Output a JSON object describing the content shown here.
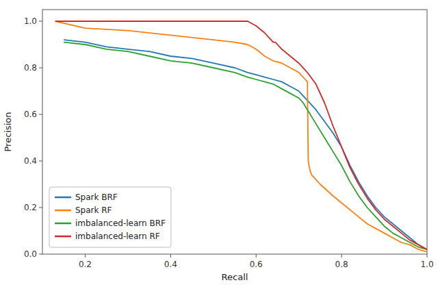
{
  "chart_data": {
    "type": "line",
    "xlabel": "Recall",
    "ylabel": "Precision",
    "xlim": [
      0.1,
      1.0
    ],
    "ylim": [
      0.0,
      1.05
    ],
    "xticks": [
      0.2,
      0.4,
      0.6,
      0.8,
      {
        "value": 1.0,
        "label": "1.0"
      }
    ],
    "yticks": [
      {
        "value": 0.0,
        "label": "0.0"
      },
      0.2,
      0.4,
      0.6,
      0.8,
      {
        "value": 1.0,
        "label": "1.0"
      }
    ],
    "grid": false,
    "legend": "lower left",
    "series": [
      {
        "name": "Spark BRF",
        "color": "#1f77b4",
        "x": [
          0.15,
          0.2,
          0.25,
          0.3,
          0.35,
          0.4,
          0.45,
          0.5,
          0.55,
          0.58,
          0.6,
          0.62,
          0.64,
          0.66,
          0.68,
          0.7,
          0.71,
          0.72,
          0.73,
          0.74,
          0.76,
          0.78,
          0.8,
          0.82,
          0.84,
          0.86,
          0.88,
          0.9,
          0.92,
          0.94,
          0.96,
          0.98,
          1.0
        ],
        "values": [
          0.92,
          0.91,
          0.89,
          0.88,
          0.87,
          0.85,
          0.84,
          0.82,
          0.8,
          0.78,
          0.77,
          0.76,
          0.75,
          0.74,
          0.72,
          0.7,
          0.68,
          0.66,
          0.64,
          0.62,
          0.57,
          0.52,
          0.46,
          0.38,
          0.31,
          0.25,
          0.2,
          0.16,
          0.13,
          0.1,
          0.07,
          0.04,
          0.02
        ]
      },
      {
        "name": "Spark RF",
        "color": "#ff7f0e",
        "x": [
          0.13,
          0.2,
          0.3,
          0.4,
          0.5,
          0.55,
          0.58,
          0.6,
          0.62,
          0.64,
          0.66,
          0.68,
          0.7,
          0.715,
          0.72,
          0.722,
          0.724,
          0.726,
          0.73,
          0.75,
          0.78,
          0.8,
          0.82,
          0.84,
          0.86,
          0.88,
          0.9,
          0.92,
          0.94,
          0.96,
          0.98,
          1.0
        ],
        "values": [
          1.0,
          0.97,
          0.96,
          0.94,
          0.92,
          0.91,
          0.9,
          0.88,
          0.85,
          0.83,
          0.82,
          0.8,
          0.78,
          0.75,
          0.74,
          0.4,
          0.38,
          0.36,
          0.34,
          0.3,
          0.25,
          0.22,
          0.19,
          0.16,
          0.13,
          0.11,
          0.09,
          0.07,
          0.05,
          0.04,
          0.02,
          0.01
        ]
      },
      {
        "name": "imbalanced-learn BRF",
        "color": "#2ca02c",
        "x": [
          0.15,
          0.2,
          0.25,
          0.3,
          0.35,
          0.4,
          0.45,
          0.5,
          0.55,
          0.58,
          0.6,
          0.62,
          0.64,
          0.66,
          0.68,
          0.7,
          0.71,
          0.72,
          0.73,
          0.74,
          0.76,
          0.78,
          0.8,
          0.82,
          0.84,
          0.86,
          0.88,
          0.9,
          0.92,
          0.94,
          0.96,
          0.98,
          1.0
        ],
        "values": [
          0.91,
          0.9,
          0.88,
          0.87,
          0.85,
          0.83,
          0.82,
          0.8,
          0.78,
          0.76,
          0.75,
          0.74,
          0.73,
          0.71,
          0.69,
          0.67,
          0.65,
          0.62,
          0.59,
          0.56,
          0.5,
          0.44,
          0.38,
          0.31,
          0.25,
          0.2,
          0.16,
          0.12,
          0.09,
          0.07,
          0.05,
          0.03,
          0.02
        ]
      },
      {
        "name": "imbalanced-learn RF",
        "color": "#d62728",
        "x": [
          0.13,
          0.2,
          0.3,
          0.4,
          0.5,
          0.52,
          0.54,
          0.56,
          0.58,
          0.6,
          0.62,
          0.63,
          0.635,
          0.64,
          0.645,
          0.65,
          0.66,
          0.68,
          0.7,
          0.72,
          0.74,
          0.76,
          0.78,
          0.8,
          0.82,
          0.84,
          0.86,
          0.88,
          0.9,
          0.92,
          0.94,
          0.96,
          0.98,
          1.0
        ],
        "values": [
          1.0,
          1.0,
          1.0,
          1.0,
          1.0,
          1.0,
          1.0,
          1.0,
          1.0,
          0.98,
          0.95,
          0.93,
          0.92,
          0.91,
          0.91,
          0.9,
          0.88,
          0.85,
          0.82,
          0.78,
          0.73,
          0.65,
          0.55,
          0.46,
          0.37,
          0.3,
          0.24,
          0.19,
          0.15,
          0.12,
          0.09,
          0.06,
          0.04,
          0.02
        ]
      }
    ]
  }
}
